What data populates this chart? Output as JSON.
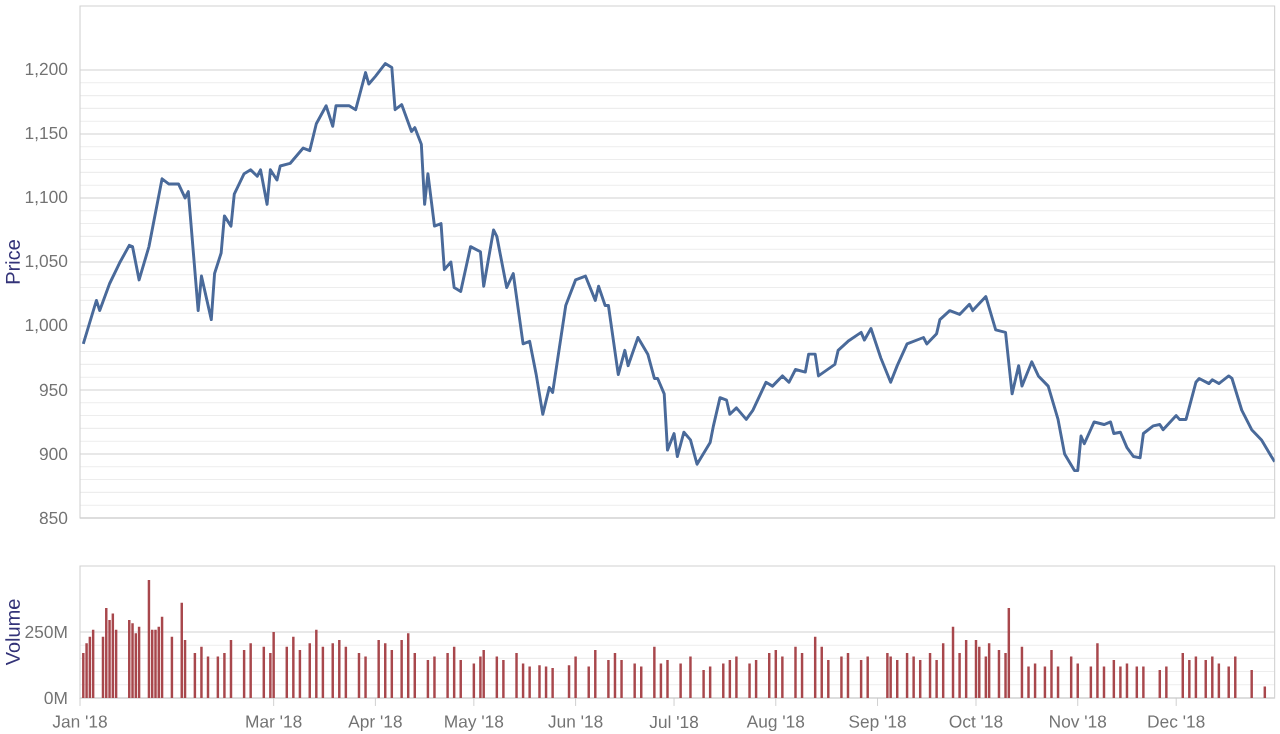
{
  "chart_data": [
    {
      "type": "line",
      "ylabel": "Price",
      "color": "#4a6a9a",
      "grid": "y",
      "tick_labels": "y",
      "marker": "none",
      "line_style": "solid",
      "xlim": [
        "2018-01-01",
        "2018-12-31"
      ],
      "ylim": [
        850,
        1250
      ],
      "yticks": [
        {
          "value": 850,
          "label": "850"
        },
        {
          "value": 900,
          "label": "900"
        },
        {
          "value": 950,
          "label": "950"
        },
        {
          "value": 1000,
          "label": "1,000"
        },
        {
          "value": 1050,
          "label": "1,050"
        },
        {
          "value": 1100,
          "label": "1,100"
        },
        {
          "value": 1150,
          "label": "1,150"
        },
        {
          "value": 1200,
          "label": "1,200"
        }
      ],
      "x": [
        "2018-01-02",
        "2018-01-06",
        "2018-01-07",
        "2018-01-10",
        "2018-01-13",
        "2018-01-16",
        "2018-01-17",
        "2018-01-19",
        "2018-01-22",
        "2018-01-26",
        "2018-01-28",
        "2018-01-31",
        "2018-02-02",
        "2018-02-03",
        "2018-02-06",
        "2018-02-07",
        "2018-02-10",
        "2018-02-11",
        "2018-02-13",
        "2018-02-14",
        "2018-02-16",
        "2018-02-17",
        "2018-02-20",
        "2018-02-22",
        "2018-02-24",
        "2018-02-25",
        "2018-02-27",
        "2018-02-28",
        "2018-03-02",
        "2018-03-03",
        "2018-03-06",
        "2018-03-10",
        "2018-03-12",
        "2018-03-14",
        "2018-03-17",
        "2018-03-19",
        "2018-03-20",
        "2018-03-24",
        "2018-03-26",
        "2018-03-29",
        "2018-03-30",
        "2018-04-01",
        "2018-04-04",
        "2018-04-06",
        "2018-04-07",
        "2018-04-09",
        "2018-04-12",
        "2018-04-13",
        "2018-04-15",
        "2018-04-16",
        "2018-04-17",
        "2018-04-19",
        "2018-04-21",
        "2018-04-22",
        "2018-04-24",
        "2018-04-25",
        "2018-04-27",
        "2018-04-30",
        "2018-05-03",
        "2018-05-04",
        "2018-05-07",
        "2018-05-08",
        "2018-05-11",
        "2018-05-13",
        "2018-05-16",
        "2018-05-18",
        "2018-05-20",
        "2018-05-22",
        "2018-05-24",
        "2018-05-25",
        "2018-05-29",
        "2018-06-01",
        "2018-06-04",
        "2018-06-07",
        "2018-06-08",
        "2018-06-10",
        "2018-06-11",
        "2018-06-14",
        "2018-06-16",
        "2018-06-17",
        "2018-06-20",
        "2018-06-23",
        "2018-06-25",
        "2018-06-26",
        "2018-06-28",
        "2018-06-29",
        "2018-07-01",
        "2018-07-02",
        "2018-07-04",
        "2018-07-06",
        "2018-07-08",
        "2018-07-12",
        "2018-07-13",
        "2018-07-15",
        "2018-07-17",
        "2018-07-18",
        "2018-07-20",
        "2018-07-23",
        "2018-07-25",
        "2018-07-29",
        "2018-07-31",
        "2018-08-03",
        "2018-08-05",
        "2018-08-07",
        "2018-08-10",
        "2018-08-11",
        "2018-08-13",
        "2018-08-14",
        "2018-08-19",
        "2018-08-20",
        "2018-08-23",
        "2018-08-27",
        "2018-08-28",
        "2018-08-30",
        "2018-09-02",
        "2018-09-05",
        "2018-09-07",
        "2018-09-10",
        "2018-09-15",
        "2018-09-16",
        "2018-09-19",
        "2018-09-20",
        "2018-09-23",
        "2018-09-26",
        "2018-09-29",
        "2018-09-30",
        "2018-10-04",
        "2018-10-07",
        "2018-10-10",
        "2018-10-12",
        "2018-10-14",
        "2018-10-15",
        "2018-10-18",
        "2018-10-20",
        "2018-10-23",
        "2018-10-26",
        "2018-10-28",
        "2018-10-31",
        "2018-11-01",
        "2018-11-02",
        "2018-11-03",
        "2018-11-06",
        "2018-11-09",
        "2018-11-11",
        "2018-11-12",
        "2018-11-14",
        "2018-11-16",
        "2018-11-18",
        "2018-11-20",
        "2018-11-21",
        "2018-11-24",
        "2018-11-26",
        "2018-11-27",
        "2018-12-01",
        "2018-12-02",
        "2018-12-04",
        "2018-12-07",
        "2018-12-08",
        "2018-12-11",
        "2018-12-12",
        "2018-12-14",
        "2018-12-17",
        "2018-12-18",
        "2018-12-21",
        "2018-12-24",
        "2018-12-27",
        "2018-12-30",
        "2018-12-31"
      ],
      "values": [
        986,
        1020,
        1012,
        1033,
        1049,
        1063,
        1062,
        1036,
        1062,
        1115,
        1111,
        1111,
        1100,
        1105,
        1012,
        1039,
        1005,
        1041,
        1057,
        1086,
        1078,
        1103,
        1119,
        1122,
        1117,
        1122,
        1095,
        1122,
        1114,
        1125,
        1127,
        1139,
        1137,
        1158,
        1172,
        1156,
        1172,
        1172,
        1169,
        1198,
        1189,
        1195,
        1205,
        1202,
        1169,
        1173,
        1152,
        1155,
        1142,
        1095,
        1119,
        1078,
        1080,
        1044,
        1050,
        1030,
        1027,
        1062,
        1058,
        1031,
        1075,
        1070,
        1030,
        1041,
        986,
        988,
        962,
        931,
        952,
        948,
        1016,
        1036,
        1039,
        1020,
        1031,
        1016,
        1016,
        962,
        981,
        969,
        991,
        978,
        959,
        959,
        947,
        903,
        916,
        898,
        917,
        911,
        892,
        909,
        922,
        944,
        942,
        931,
        936,
        927,
        934,
        956,
        953,
        961,
        956,
        966,
        964,
        978,
        978,
        961,
        970,
        981,
        988,
        995,
        989,
        998,
        975,
        956,
        969,
        986,
        991,
        986,
        994,
        1005,
        1012,
        1009,
        1017,
        1012,
        1023,
        997,
        995,
        947,
        969,
        953,
        972,
        961,
        953,
        927,
        900,
        887,
        887,
        914,
        908,
        925,
        923,
        925,
        916,
        917,
        905,
        898,
        897,
        916,
        922,
        923,
        919,
        930,
        927,
        927,
        956,
        959,
        955,
        958,
        955,
        961,
        959,
        934,
        919,
        911,
        898,
        894
      ]
    },
    {
      "type": "bar",
      "ylabel": "Volume",
      "color": "#a8474c",
      "grid": "y",
      "xlim": [
        "2018-01-01",
        "2018-12-31"
      ],
      "ylim": [
        0,
        500
      ],
      "yticks": [
        {
          "value": 0,
          "label": "0M"
        },
        {
          "value": 250,
          "label": "250M"
        }
      ],
      "xticks": [
        {
          "value": "2018-01-01",
          "label": "Jan '18"
        },
        {
          "value": "2018-03-01",
          "label": "Mar '18"
        },
        {
          "value": "2018-04-01",
          "label": "Apr '18"
        },
        {
          "value": "2018-05-01",
          "label": "May '18"
        },
        {
          "value": "2018-06-01",
          "label": "Jun '18"
        },
        {
          "value": "2018-07-01",
          "label": "Jul '18"
        },
        {
          "value": "2018-08-01",
          "label": "Aug '18"
        },
        {
          "value": "2018-09-01",
          "label": "Sep '18"
        },
        {
          "value": "2018-10-01",
          "label": "Oct '18"
        },
        {
          "value": "2018-11-01",
          "label": "Nov '18"
        },
        {
          "value": "2018-12-01",
          "label": "Dec '18"
        }
      ],
      "x": [
        "2018-01-02",
        "2018-01-03",
        "2018-01-04",
        "2018-01-05",
        "2018-01-08",
        "2018-01-09",
        "2018-01-10",
        "2018-01-11",
        "2018-01-12",
        "2018-01-16",
        "2018-01-17",
        "2018-01-18",
        "2018-01-19",
        "2018-01-22",
        "2018-01-23",
        "2018-01-24",
        "2018-01-25",
        "2018-01-26",
        "2018-01-29",
        "2018-02-01",
        "2018-02-02",
        "2018-02-05",
        "2018-02-07",
        "2018-02-09",
        "2018-02-12",
        "2018-02-14",
        "2018-02-16",
        "2018-02-20",
        "2018-02-22",
        "2018-02-26",
        "2018-02-28",
        "2018-03-01",
        "2018-03-05",
        "2018-03-07",
        "2018-03-09",
        "2018-03-12",
        "2018-03-14",
        "2018-03-16",
        "2018-03-19",
        "2018-03-21",
        "2018-03-23",
        "2018-03-27",
        "2018-03-29",
        "2018-04-02",
        "2018-04-04",
        "2018-04-06",
        "2018-04-09",
        "2018-04-11",
        "2018-04-13",
        "2018-04-17",
        "2018-04-19",
        "2018-04-23",
        "2018-04-25",
        "2018-04-27",
        "2018-05-01",
        "2018-05-03",
        "2018-05-04",
        "2018-05-08",
        "2018-05-10",
        "2018-05-14",
        "2018-05-16",
        "2018-05-18",
        "2018-05-21",
        "2018-05-23",
        "2018-05-25",
        "2018-05-30",
        "2018-06-01",
        "2018-06-05",
        "2018-06-07",
        "2018-06-11",
        "2018-06-13",
        "2018-06-15",
        "2018-06-19",
        "2018-06-21",
        "2018-06-25",
        "2018-06-27",
        "2018-06-29",
        "2018-07-03",
        "2018-07-06",
        "2018-07-10",
        "2018-07-12",
        "2018-07-16",
        "2018-07-18",
        "2018-07-20",
        "2018-07-24",
        "2018-07-26",
        "2018-07-30",
        "2018-08-01",
        "2018-08-03",
        "2018-08-07",
        "2018-08-09",
        "2018-08-13",
        "2018-08-15",
        "2018-08-17",
        "2018-08-21",
        "2018-08-23",
        "2018-08-27",
        "2018-08-29",
        "2018-09-04",
        "2018-09-05",
        "2018-09-07",
        "2018-09-10",
        "2018-09-12",
        "2018-09-14",
        "2018-09-17",
        "2018-09-19",
        "2018-09-21",
        "2018-09-24",
        "2018-09-26",
        "2018-09-28",
        "2018-10-01",
        "2018-10-02",
        "2018-10-04",
        "2018-10-05",
        "2018-10-08",
        "2018-10-10",
        "2018-10-11",
        "2018-10-15",
        "2018-10-17",
        "2018-10-19",
        "2018-10-22",
        "2018-10-24",
        "2018-10-26",
        "2018-10-30",
        "2018-11-01",
        "2018-11-05",
        "2018-11-07",
        "2018-11-09",
        "2018-11-12",
        "2018-11-14",
        "2018-11-16",
        "2018-11-19",
        "2018-11-21",
        "2018-11-26",
        "2018-11-28",
        "2018-12-03",
        "2018-12-05",
        "2018-12-07",
        "2018-12-10",
        "2018-12-12",
        "2018-12-14",
        "2018-12-17",
        "2018-12-19",
        "2018-12-24",
        "2018-12-28"
      ],
      "values": [
        170,
        207,
        232,
        258,
        232,
        341,
        295,
        320,
        258,
        295,
        283,
        245,
        270,
        447,
        258,
        258,
        270,
        308,
        232,
        361,
        220,
        170,
        194,
        157,
        157,
        170,
        220,
        182,
        207,
        194,
        170,
        250,
        194,
        232,
        182,
        207,
        258,
        194,
        207,
        220,
        194,
        170,
        157,
        220,
        207,
        182,
        220,
        245,
        170,
        144,
        157,
        170,
        194,
        144,
        131,
        157,
        182,
        157,
        144,
        170,
        131,
        119,
        124,
        119,
        114,
        124,
        157,
        119,
        182,
        144,
        170,
        144,
        131,
        119,
        194,
        131,
        144,
        131,
        157,
        106,
        119,
        131,
        144,
        157,
        131,
        144,
        170,
        182,
        157,
        194,
        170,
        232,
        194,
        144,
        157,
        170,
        144,
        157,
        170,
        157,
        144,
        170,
        157,
        144,
        170,
        144,
        207,
        270,
        170,
        220,
        220,
        194,
        157,
        207,
        182,
        170,
        341,
        194,
        119,
        131,
        119,
        182,
        119,
        157,
        131,
        119,
        207,
        119,
        144,
        119,
        131,
        119,
        119,
        106,
        119,
        170,
        144,
        157,
        144,
        157,
        131,
        119,
        157,
        106,
        43
      ]
    }
  ]
}
